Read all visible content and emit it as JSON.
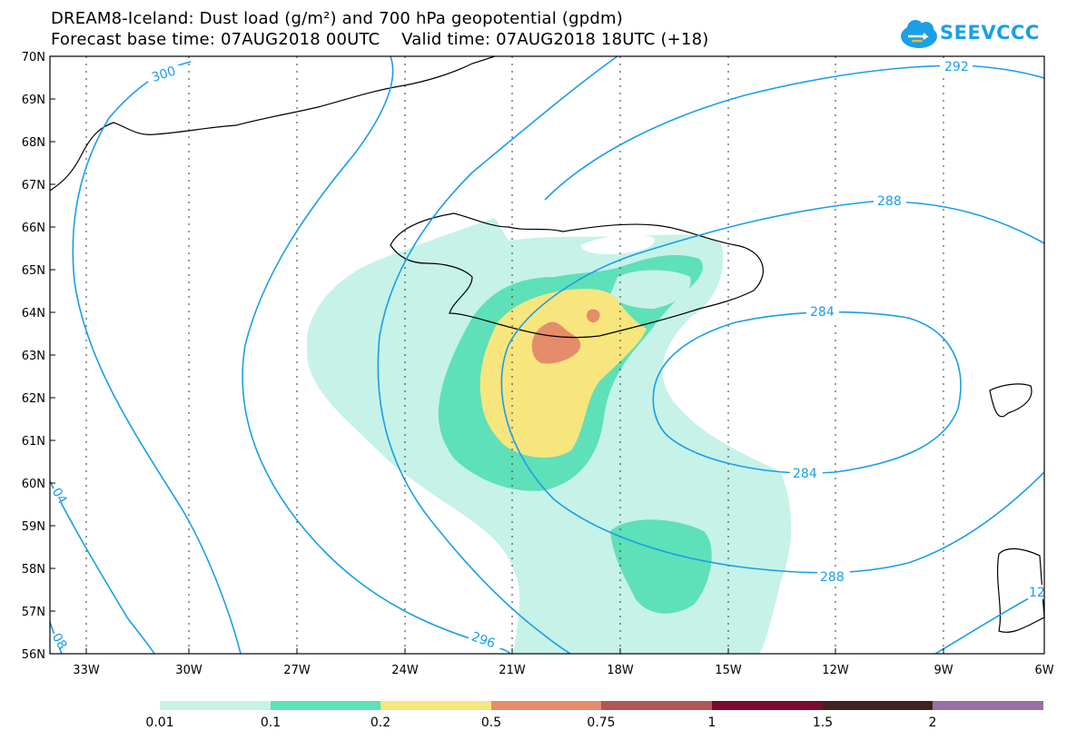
{
  "title_line1": "DREAM8-Iceland: Dust load (g/m²) and 700 hPa geopotential (gpdm)",
  "title_line2": "Forecast base time: 07AUG2018 00UTC    Valid time: 07AUG2018 18UTC (+18)",
  "logo_text": "SEEVCCC",
  "lat_labels": [
    "70N",
    "69N",
    "68N",
    "67N",
    "66N",
    "65N",
    "64N",
    "63N",
    "62N",
    "61N",
    "60N",
    "59N",
    "58N",
    "57N",
    "56N"
  ],
  "lon_labels": [
    "33W",
    "30W",
    "27W",
    "24W",
    "21W",
    "18W",
    "15W",
    "12W",
    "9W",
    "6W"
  ],
  "contour_labels": {
    "c300": "300",
    "c292": "292",
    "c288a": "288",
    "c284a": "284",
    "c284b": "284",
    "c288b": "288",
    "c296": "296",
    "c304": "04",
    "c308": "08",
    "c312": "12"
  },
  "colorbar": {
    "labels": [
      "0.01",
      "0.1",
      "0.2",
      "0.5",
      "0.75",
      "1",
      "1.5",
      "2"
    ],
    "colors": [
      "#c6f2e8",
      "#5ee0b9",
      "#f7e57e",
      "#e58d6b",
      "#b25555",
      "#7a0a2f",
      "#3d2420",
      "#9a6fa6"
    ]
  },
  "colors": {
    "contour": "#1a9ee6",
    "dust_001": "#c6f2e8",
    "dust_01": "#5ee0b9",
    "dust_02": "#f7e57e",
    "dust_05": "#e58d6b"
  }
}
